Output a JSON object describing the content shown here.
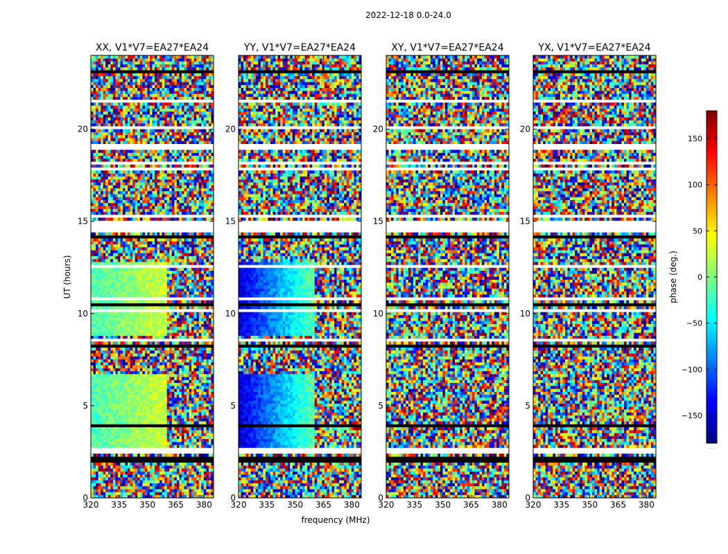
{
  "figure": {
    "title": "2022-12-18 0.0-24.0",
    "xlabel": "frequency (MHz)",
    "ylabel": "UT (hours)",
    "colorbar_label": "phase (deg.)",
    "colorbar_footnote": "....."
  },
  "chart_data": {
    "type": "heatmap",
    "colormap": "jet",
    "xlim": [
      320,
      385
    ],
    "ylim": [
      0,
      24
    ],
    "clim": [
      -180,
      180
    ],
    "x_ticks": [
      320,
      335,
      350,
      365,
      380
    ],
    "x_tick_labels": [
      "320",
      "335",
      "350",
      "365",
      "380"
    ],
    "y_ticks": [
      0,
      5,
      10,
      15,
      20
    ],
    "y_tick_labels": [
      "0",
      "5",
      "10",
      "15",
      "20"
    ],
    "colorbar_ticks": [
      150,
      100,
      50,
      0,
      -50,
      -100,
      -150
    ],
    "colorbar_tick_labels": [
      "150",
      "100",
      "50",
      "0",
      "−50",
      "−100",
      "−150"
    ],
    "blank_time_bands_hours": [
      [
        2.4,
        2.65
      ],
      [
        18.9,
        19.15
      ],
      [
        14.4,
        15.0
      ]
    ],
    "flagged_time_bands_hours": [
      [
        1.95,
        2.2
      ],
      [
        14.05,
        14.25
      ]
    ],
    "panels": [
      {
        "title": "XX, V1*V7=EA27*EA24",
        "coherent_phase_deg": -20,
        "coherent_freq_range": [
          320,
          360
        ]
      },
      {
        "title": "YY, V1*V7=EA27*EA24",
        "coherent_phase_deg": -150,
        "coherent_freq_range": [
          320,
          360
        ]
      },
      {
        "title": "XY, V1*V7=EA27*EA24",
        "coherent_phase_deg": null,
        "coherent_freq_range": null
      },
      {
        "title": "YX, V1*V7=EA27*EA24",
        "coherent_phase_deg": null,
        "coherent_freq_range": null
      }
    ]
  }
}
